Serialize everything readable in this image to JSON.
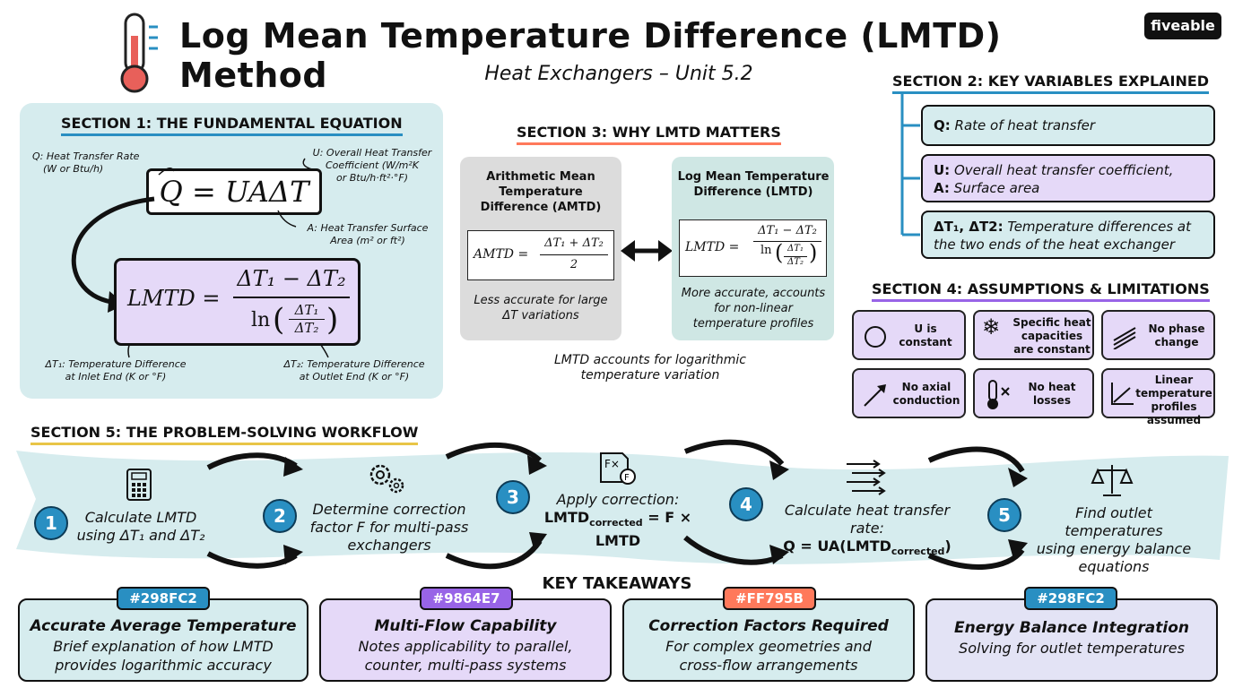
{
  "header": {
    "title": "Log Mean Temperature Difference (LMTD) Method",
    "subtitle": "Heat Exchangers – Unit 5.2",
    "brand": "fiveable"
  },
  "section1": {
    "heading": "SECTION 1: THE FUNDAMENTAL EQUATION",
    "q_label": "Q: Heat Transfer Rate",
    "q_units": "(W or Btu/h)",
    "u_label": "U: Overall Heat Transfer",
    "u_label2": "Coefficient (W/m²K",
    "u_units": "or Btu/h·ft²·°F)",
    "a_label": "A: Heat Transfer Surface",
    "a_units": "Area (m² or ft²)",
    "dt1_label": "ΔT₁: Temperature Difference",
    "dt1_units": "at Inlet End (K or °F)",
    "dt2_label": "ΔT₂: Temperature Difference",
    "dt2_units": "at Outlet End (K or °F)",
    "eq_q": "Q = UAΔT",
    "eq_lmtd_lhs": "LMTD =",
    "eq_num": "ΔT₁ − ΔT₂",
    "eq_ln": "ln",
    "eq_frac_num": "ΔT₁",
    "eq_frac_den": "ΔT₂"
  },
  "section2": {
    "heading": "SECTION 2: KEY VARIABLES EXPLAINED",
    "items": [
      {
        "key": "Q:",
        "text": "Rate of heat transfer"
      },
      {
        "key": "U:",
        "text": "Overall heat transfer coefficient,",
        "key2": "A:",
        "text2": "Surface area"
      },
      {
        "key": "ΔT₁, ΔT2:",
        "text": "Temperature differences at",
        "text2": "the two ends of the heat exchanger"
      }
    ]
  },
  "section3": {
    "heading": "SECTION 3: WHY LMTD MATTERS",
    "amtd_title": "Arithmetic Mean Temperature Difference (AMTD)",
    "amtd_lhs": "AMTD =",
    "amtd_num": "ΔT₁ + ΔT₂",
    "amtd_den": "2",
    "amtd_note": "Less accurate for large ΔT variations",
    "lmtd_title": "Log Mean Temperature Difference (LMTD)",
    "lmtd_lhs": "LMTD =",
    "lmtd_num": "ΔT₁ − ΔT₂",
    "lmtd_ln": "ln",
    "lmtd_fn": "ΔT₁",
    "lmtd_fd": "ΔT₂",
    "lmtd_note": "More accurate, accounts for non-linear temperature profiles",
    "caption": "LMTD accounts for logarithmic temperature variation"
  },
  "section4": {
    "heading": "SECTION 4: ASSUMPTIONS & LIMITATIONS",
    "items": [
      {
        "icon": "circle-icon",
        "text": "U is constant"
      },
      {
        "icon": "snowflake-icon",
        "text": "Specific heat capacities are constant"
      },
      {
        "icon": "wave-lines-icon",
        "text": "No phase change"
      },
      {
        "icon": "arrow-diagonal-icon",
        "text": "No axial conduction"
      },
      {
        "icon": "thermometer-x-icon",
        "text": "No heat losses"
      },
      {
        "icon": "line-graph-icon",
        "text": "Linear temperature profiles assumed"
      }
    ]
  },
  "section5": {
    "heading": "SECTION 5: THE PROBLEM-SOLVING WORKFLOW",
    "steps": [
      {
        "num": "1",
        "icon": "calculator-icon",
        "line1": "Calculate LMTD",
        "line2": "using ΔT₁ and ΔT₂"
      },
      {
        "num": "2",
        "icon": "gears-icon",
        "line1": "Determine correction",
        "line2": "factor F for multi-pass",
        "line3": "exchangers"
      },
      {
        "num": "3",
        "icon": "function-icon",
        "line1": "Apply correction:",
        "line2": "LMTD",
        "sub": "corrected",
        "line2b": " = F × LMTD"
      },
      {
        "num": "4",
        "icon": "flow-arrows-icon",
        "line1": "Calculate heat transfer rate:",
        "line2": "Q = UA(LMTD",
        "sub": "corrected",
        "line2b": ")"
      },
      {
        "num": "5",
        "icon": "balance-scale-icon",
        "line1": "Find outlet temperatures",
        "line2": "using energy balance",
        "line3": "equations"
      }
    ]
  },
  "takeaways": {
    "heading": "KEY TAKEAWAYS",
    "items": [
      {
        "tag": "#298FC2",
        "color": "#298FC2",
        "bg": "#D6ECEE",
        "title": "Accurate Average Temperature",
        "line1": "Brief explanation of how LMTD",
        "line2": "provides logarithmic accuracy"
      },
      {
        "tag": "#9864E7",
        "color": "#9864E7",
        "bg": "#E5D9F8",
        "title": "Multi-Flow Capability",
        "line1": "Notes applicability to parallel,",
        "line2": "counter, multi-pass systems"
      },
      {
        "tag": "#FF795B",
        "color": "#FF795B",
        "bg": "#D6ECEE",
        "title": "Correction Factors Required",
        "line1": "For complex geometries and",
        "line2": "cross-flow arrangements"
      },
      {
        "tag": "#298FC2",
        "color": "#298FC2",
        "bg": "#E3E3F5",
        "title": "Energy Balance Integration",
        "line1": "Solving for outlet temperatures",
        "line2": ""
      }
    ]
  }
}
